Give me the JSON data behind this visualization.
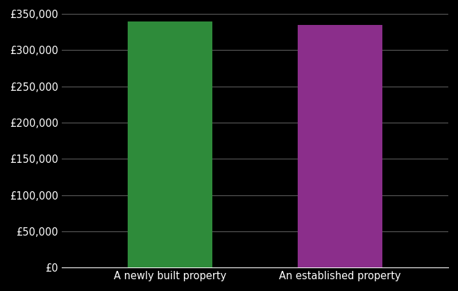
{
  "categories": [
    "A newly built property",
    "An established property"
  ],
  "values": [
    339000,
    335000
  ],
  "bar_colors": [
    "#2e8b3a",
    "#8b2e8b"
  ],
  "background_color": "#000000",
  "text_color": "#ffffff",
  "grid_color": "#666666",
  "ylim": [
    0,
    350000
  ],
  "ytick_step": 50000,
  "bar_width": 0.22,
  "x_positions": [
    0.28,
    0.72
  ],
  "xlim": [
    0,
    1
  ],
  "tick_label_fontsize": 10.5,
  "xlabel_fontsize": 10.5
}
